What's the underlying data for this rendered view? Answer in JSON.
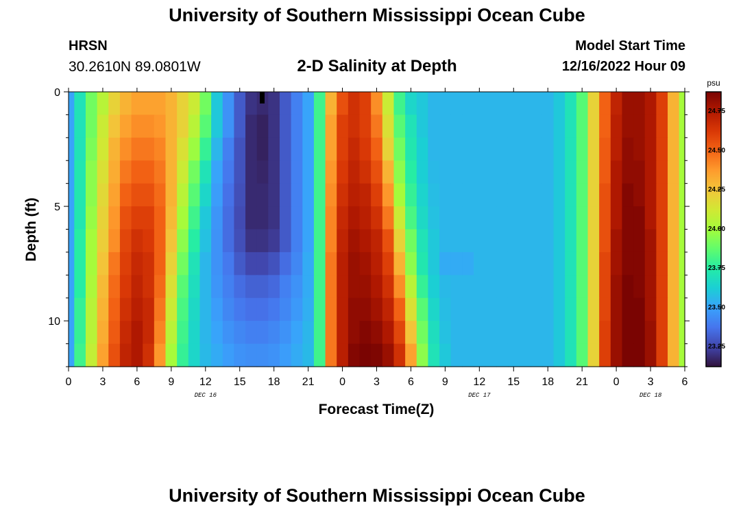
{
  "header": {
    "title": "University of Southern Mississippi Ocean Cube",
    "station": "HRSN",
    "coordinates": "30.2610N  89.0801W",
    "subtitle": "2-D Salinity at Depth",
    "model_start_label": "Model Start Time",
    "model_start_value": "12/16/2022 Hour 09"
  },
  "footer": {
    "title": "University of Southern Mississippi Ocean Cube"
  },
  "chart_data": {
    "type": "heatmap",
    "xlabel": "Forecast Time(Z)",
    "ylabel": "Depth (ft)",
    "x_tick_labels": [
      "0",
      "3",
      "6",
      "9",
      "12",
      "15",
      "18",
      "21",
      "0",
      "3",
      "6",
      "9",
      "12",
      "15",
      "18",
      "21",
      "0",
      "3",
      "6"
    ],
    "x_range_hours": [
      0,
      54
    ],
    "date_labels": [
      {
        "label": "DEC 16",
        "hour": 12
      },
      {
        "label": "DEC 17",
        "hour": 36
      },
      {
        "label": "DEC 18",
        "hour": 51
      }
    ],
    "y_tick_labels": [
      "0",
      "5",
      "10"
    ],
    "y_ticks": [
      0,
      5,
      10
    ],
    "ylim": [
      0,
      12
    ],
    "y_inverted": true,
    "colorbar": {
      "unit": "psu",
      "tick_labels": [
        "24.75",
        "24.50",
        "24.25",
        "24.00",
        "23.75",
        "23.50",
        "23.25"
      ],
      "ticks": [
        24.75,
        24.5,
        24.25,
        24.0,
        23.75,
        23.5,
        23.25
      ],
      "range": [
        23.12,
        24.87
      ],
      "colormap": [
        "#30123b",
        "#4145ab",
        "#4675ed",
        "#39a2fc",
        "#1bcfd4",
        "#24eca6",
        "#61fc6c",
        "#a4fc3b",
        "#d1e834",
        "#f3c63a",
        "#fe9b2d",
        "#f36315",
        "#d93806",
        "#b11901",
        "#7a0402"
      ]
    },
    "depth_levels_ft": [
      0.5,
      1.5,
      2.5,
      3.5,
      4.5,
      5.5,
      6.5,
      7.5,
      8.5,
      9.5,
      10.5,
      11.5
    ],
    "time_hours": [
      0,
      1,
      2,
      3,
      4,
      5,
      6,
      7,
      8,
      9,
      10,
      11,
      12,
      13,
      14,
      15,
      16,
      17,
      18,
      19,
      20,
      21,
      22,
      23,
      24,
      25,
      26,
      27,
      28,
      29,
      30,
      31,
      32,
      33,
      34,
      35,
      36,
      37,
      38,
      39,
      40,
      41,
      42,
      43,
      44,
      45,
      46,
      47,
      48,
      49,
      50,
      51,
      52,
      53,
      54
    ],
    "salinity_psu": [
      [
        23.5,
        23.7,
        23.9,
        24.05,
        24.2,
        24.3,
        24.35,
        24.35,
        24.35,
        24.3,
        24.2,
        24.1,
        23.9,
        23.6,
        23.45,
        23.3,
        23.2,
        23.18,
        23.2,
        23.3,
        23.4,
        23.5,
        23.8,
        24.3,
        24.55,
        24.65,
        24.6,
        24.4,
        24.1,
        23.8,
        23.65,
        23.6,
        23.55,
        23.55,
        23.55,
        23.55,
        23.55,
        23.55,
        23.55,
        23.55,
        23.55,
        23.55,
        23.55,
        23.6,
        23.7,
        23.85,
        24.2,
        24.5,
        24.7,
        24.8,
        24.8,
        24.75,
        24.6,
        24.3,
        24.0
      ],
      [
        23.5,
        23.7,
        23.9,
        24.1,
        24.25,
        24.35,
        24.4,
        24.4,
        24.38,
        24.3,
        24.2,
        24.05,
        23.85,
        23.6,
        23.45,
        23.3,
        23.18,
        23.16,
        23.2,
        23.3,
        23.4,
        23.5,
        23.8,
        24.35,
        24.6,
        24.65,
        24.6,
        24.45,
        24.15,
        23.85,
        23.7,
        23.6,
        23.55,
        23.55,
        23.55,
        23.55,
        23.55,
        23.55,
        23.55,
        23.55,
        23.55,
        23.55,
        23.55,
        23.6,
        23.7,
        23.85,
        24.2,
        24.5,
        24.72,
        24.8,
        24.8,
        24.75,
        24.6,
        24.3,
        24.0
      ],
      [
        23.5,
        23.7,
        23.92,
        24.12,
        24.3,
        24.4,
        24.45,
        24.45,
        24.42,
        24.3,
        24.15,
        23.98,
        23.78,
        23.55,
        23.4,
        23.28,
        23.18,
        23.16,
        23.2,
        23.3,
        23.4,
        23.5,
        23.8,
        24.35,
        24.6,
        24.68,
        24.62,
        24.5,
        24.2,
        23.9,
        23.72,
        23.62,
        23.55,
        23.55,
        23.55,
        23.55,
        23.55,
        23.55,
        23.55,
        23.55,
        23.55,
        23.55,
        23.55,
        23.6,
        23.7,
        23.85,
        24.2,
        24.52,
        24.72,
        24.82,
        24.8,
        24.75,
        24.6,
        24.3,
        24.0
      ],
      [
        23.5,
        23.72,
        23.95,
        24.15,
        24.32,
        24.45,
        24.5,
        24.5,
        24.45,
        24.3,
        24.1,
        23.9,
        23.7,
        23.5,
        23.38,
        23.28,
        23.18,
        23.17,
        23.2,
        23.3,
        23.4,
        23.5,
        23.8,
        24.38,
        24.62,
        24.7,
        24.65,
        24.55,
        24.3,
        23.95,
        23.75,
        23.62,
        23.56,
        23.55,
        23.55,
        23.55,
        23.55,
        23.55,
        23.55,
        23.55,
        23.55,
        23.55,
        23.55,
        23.6,
        23.7,
        23.85,
        24.2,
        24.52,
        24.75,
        24.82,
        24.82,
        24.75,
        24.6,
        24.3,
        24.0
      ],
      [
        23.5,
        23.72,
        23.95,
        24.18,
        24.35,
        24.5,
        24.55,
        24.55,
        24.48,
        24.3,
        24.05,
        23.85,
        23.65,
        23.48,
        23.36,
        23.27,
        23.18,
        23.18,
        23.2,
        23.3,
        23.4,
        23.5,
        23.8,
        24.4,
        24.65,
        24.72,
        24.7,
        24.6,
        24.38,
        24.0,
        23.78,
        23.64,
        23.57,
        23.55,
        23.55,
        23.55,
        23.55,
        23.55,
        23.55,
        23.55,
        23.55,
        23.55,
        23.55,
        23.6,
        23.7,
        23.85,
        24.2,
        24.55,
        24.75,
        24.85,
        24.82,
        24.75,
        24.6,
        24.3,
        24.0
      ],
      [
        23.5,
        23.72,
        23.97,
        24.2,
        24.38,
        24.55,
        24.6,
        24.6,
        24.5,
        24.28,
        24.0,
        23.8,
        23.6,
        23.46,
        23.35,
        23.26,
        23.18,
        23.18,
        23.2,
        23.3,
        23.4,
        23.5,
        23.8,
        24.42,
        24.68,
        24.75,
        24.72,
        24.65,
        24.45,
        24.1,
        23.82,
        23.66,
        23.58,
        23.55,
        23.55,
        23.55,
        23.55,
        23.55,
        23.55,
        23.55,
        23.55,
        23.55,
        23.55,
        23.6,
        23.7,
        23.85,
        24.2,
        24.55,
        24.75,
        24.85,
        24.85,
        24.75,
        24.6,
        24.3,
        24.0
      ],
      [
        23.5,
        23.75,
        24.0,
        24.22,
        24.4,
        24.58,
        24.65,
        24.62,
        24.5,
        24.25,
        23.95,
        23.75,
        23.58,
        23.45,
        23.35,
        23.27,
        23.2,
        23.2,
        23.22,
        23.3,
        23.4,
        23.5,
        23.8,
        24.42,
        24.7,
        24.78,
        24.75,
        24.7,
        24.55,
        24.2,
        23.9,
        23.7,
        23.6,
        23.55,
        23.55,
        23.55,
        23.55,
        23.55,
        23.55,
        23.55,
        23.55,
        23.55,
        23.55,
        23.6,
        23.7,
        23.85,
        24.2,
        24.55,
        24.78,
        24.85,
        24.85,
        24.78,
        24.6,
        24.3,
        24.0
      ],
      [
        23.5,
        23.75,
        24.0,
        24.25,
        24.45,
        24.6,
        24.68,
        24.65,
        24.5,
        24.2,
        23.9,
        23.7,
        23.55,
        23.45,
        23.38,
        23.3,
        23.25,
        23.25,
        23.28,
        23.35,
        23.42,
        23.52,
        23.8,
        24.45,
        24.72,
        24.8,
        24.78,
        24.72,
        24.6,
        24.3,
        23.95,
        23.72,
        23.6,
        23.52,
        23.52,
        23.52,
        23.55,
        23.55,
        23.55,
        23.55,
        23.55,
        23.55,
        23.55,
        23.6,
        23.7,
        23.85,
        24.2,
        24.58,
        24.78,
        24.85,
        24.85,
        24.78,
        24.6,
        24.3,
        24.0
      ],
      [
        23.5,
        23.75,
        24.02,
        24.28,
        24.48,
        24.62,
        24.7,
        24.65,
        24.48,
        24.15,
        23.85,
        23.68,
        23.55,
        23.46,
        23.4,
        23.35,
        23.32,
        23.32,
        23.34,
        23.4,
        23.45,
        23.52,
        23.8,
        24.45,
        24.72,
        24.8,
        24.8,
        24.75,
        24.65,
        24.4,
        24.05,
        23.78,
        23.62,
        23.56,
        23.55,
        23.55,
        23.55,
        23.55,
        23.55,
        23.55,
        23.55,
        23.55,
        23.55,
        23.6,
        23.7,
        23.85,
        24.2,
        24.58,
        24.8,
        24.88,
        24.85,
        24.78,
        24.6,
        24.3,
        24.0
      ],
      [
        23.5,
        23.78,
        24.05,
        24.3,
        24.5,
        24.65,
        24.72,
        24.68,
        24.45,
        24.1,
        23.82,
        23.66,
        23.55,
        23.48,
        23.42,
        23.38,
        23.36,
        23.36,
        23.38,
        23.42,
        23.47,
        23.53,
        23.8,
        24.45,
        24.72,
        24.82,
        24.82,
        24.78,
        24.7,
        24.5,
        24.15,
        23.85,
        23.65,
        23.57,
        23.55,
        23.55,
        23.55,
        23.55,
        23.55,
        23.55,
        23.55,
        23.55,
        23.55,
        23.6,
        23.7,
        23.85,
        24.2,
        24.58,
        24.8,
        24.88,
        24.88,
        24.78,
        24.6,
        24.3,
        24.0
      ],
      [
        23.5,
        23.78,
        24.05,
        24.32,
        24.52,
        24.68,
        24.75,
        24.68,
        24.42,
        24.05,
        23.8,
        23.65,
        23.55,
        23.5,
        23.45,
        23.42,
        23.4,
        23.4,
        23.42,
        23.45,
        23.5,
        23.55,
        23.8,
        24.45,
        24.72,
        24.82,
        24.85,
        24.82,
        24.75,
        24.58,
        24.25,
        23.9,
        23.68,
        23.58,
        23.55,
        23.55,
        23.55,
        23.55,
        23.55,
        23.55,
        23.55,
        23.55,
        23.55,
        23.6,
        23.7,
        23.85,
        24.2,
        24.6,
        24.8,
        24.88,
        24.88,
        24.8,
        24.6,
        24.3,
        24.0
      ],
      [
        23.5,
        23.8,
        24.08,
        24.35,
        24.55,
        24.7,
        24.75,
        24.65,
        24.38,
        24.0,
        23.78,
        23.65,
        23.56,
        23.52,
        23.48,
        23.45,
        23.44,
        23.44,
        23.45,
        23.48,
        23.52,
        23.56,
        23.8,
        24.45,
        24.72,
        24.85,
        24.88,
        24.86,
        24.8,
        24.65,
        24.35,
        23.95,
        23.7,
        23.6,
        23.55,
        23.55,
        23.55,
        23.55,
        23.55,
        23.55,
        23.55,
        23.55,
        23.55,
        23.6,
        23.7,
        23.85,
        24.2,
        24.6,
        24.8,
        24.88,
        24.88,
        24.8,
        24.6,
        24.3,
        24.0
      ]
    ]
  }
}
